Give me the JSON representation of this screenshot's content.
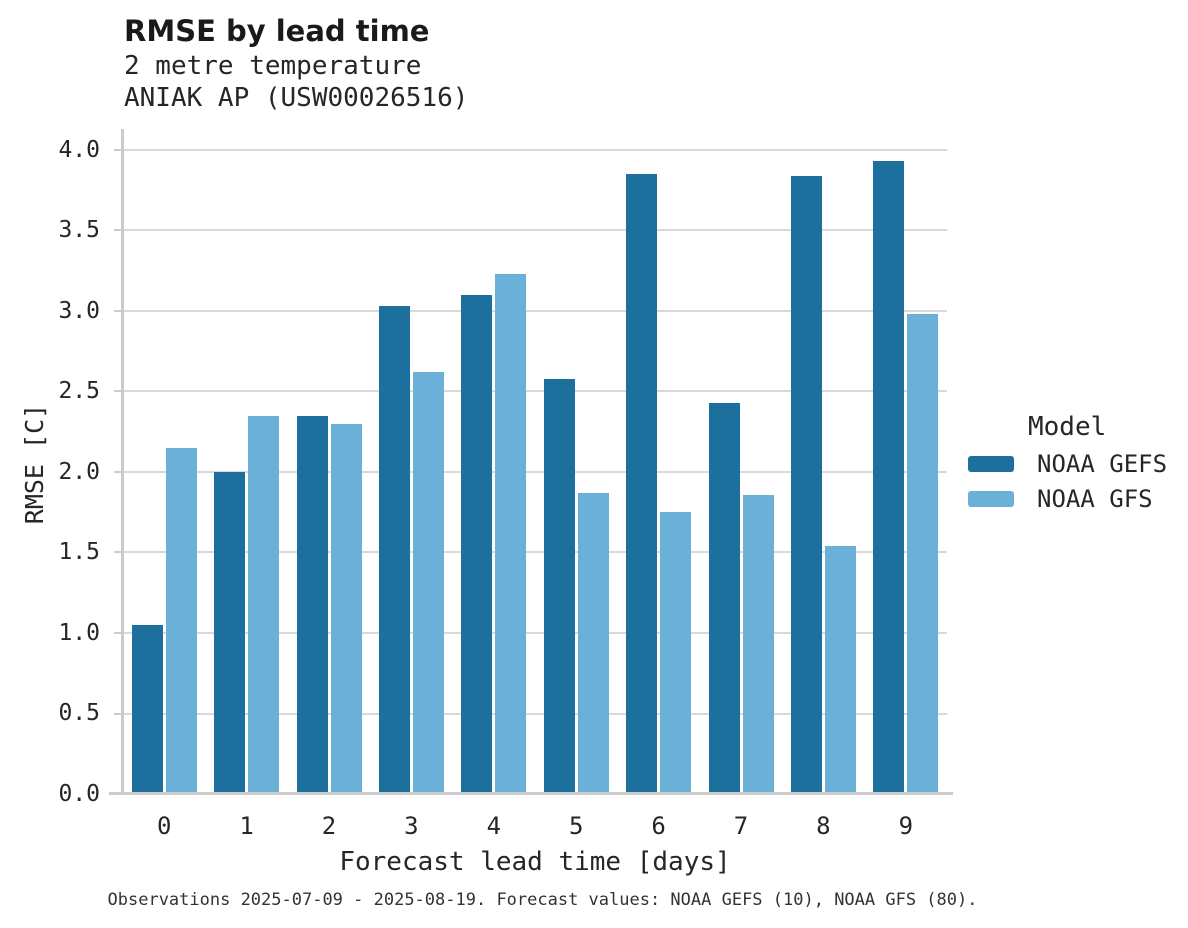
{
  "header": {
    "title": "RMSE by lead time",
    "subtitle_line1": "2 metre temperature",
    "subtitle_line2": "ANIAK AP (USW00026516)"
  },
  "legend": {
    "title": "Model",
    "entries": [
      {
        "label": "NOAA GEFS",
        "color": "#1d6f9e"
      },
      {
        "label": "NOAA GFS",
        "color": "#6bb0d6"
      }
    ]
  },
  "footer": {
    "caption": "Observations 2025-07-09 - 2025-08-19. Forecast values: NOAA GEFS (10), NOAA GFS (80)."
  },
  "chart_data": {
    "type": "bar",
    "title": "RMSE by lead time",
    "subtitle": [
      "2 metre temperature",
      "ANIAK AP (USW00026516)"
    ],
    "categories": [
      "0",
      "1",
      "2",
      "3",
      "4",
      "5",
      "6",
      "7",
      "8",
      "9"
    ],
    "series": [
      {
        "name": "NOAA GEFS",
        "color": "#1d6f9e",
        "values": [
          1.05,
          2.0,
          2.35,
          3.03,
          3.1,
          2.58,
          3.85,
          2.43,
          3.84,
          3.93
        ]
      },
      {
        "name": "NOAA GFS",
        "color": "#6bb0d6",
        "values": [
          2.15,
          2.35,
          2.3,
          2.62,
          3.23,
          1.87,
          1.75,
          1.86,
          1.54,
          2.98
        ]
      }
    ],
    "xlabel": "Forecast lead time [days]",
    "ylabel": "RMSE [C]",
    "ylim": [
      0,
      4.13
    ],
    "yticks": [
      "0.0",
      "0.5",
      "1.0",
      "1.5",
      "2.0",
      "2.5",
      "3.0",
      "3.5",
      "4.0"
    ],
    "grid": true,
    "legend_title": "Model",
    "legend_position": "right",
    "caption": "Observations 2025-07-09 - 2025-08-19. Forecast values: NOAA GEFS (10), NOAA GFS (80)."
  },
  "colors": {
    "gridline": "#d9d9d9",
    "axis": "#cccccc",
    "text": "#262626"
  }
}
